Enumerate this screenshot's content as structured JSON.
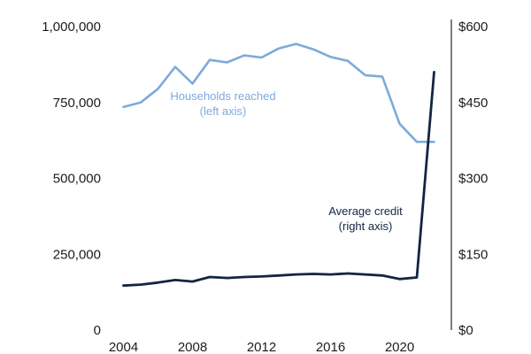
{
  "colors": {
    "left_series": "#7eaadc",
    "right_series": "#142542",
    "axis_text": "#1c1c1c"
  },
  "chart_data": {
    "type": "line",
    "title": "",
    "xlabel": "",
    "ylabel_left": "",
    "ylabel_right": "",
    "grid": false,
    "x": [
      2004,
      2005,
      2006,
      2007,
      2008,
      2009,
      2010,
      2011,
      2012,
      2013,
      2014,
      2015,
      2016,
      2017,
      2018,
      2019,
      2020,
      2021,
      2022
    ],
    "xlim": [
      2003,
      2023
    ],
    "x_ticks": [
      2004,
      2008,
      2012,
      2016,
      2020
    ],
    "x_tick_labels": [
      "2004",
      "2008",
      "2012",
      "2016",
      "2020"
    ],
    "y_left": {
      "lim": [
        0,
        1000000
      ],
      "ticks": [
        0,
        250000,
        500000,
        750000,
        1000000
      ],
      "tick_labels": [
        "0",
        "250,000",
        "500,000",
        "750,000",
        "1,000,000"
      ]
    },
    "y_right": {
      "lim": [
        0,
        600
      ],
      "ticks": [
        0,
        150,
        300,
        450,
        600
      ],
      "tick_labels": [
        "$0",
        "$150",
        "$300",
        "$450",
        "$600"
      ]
    },
    "series": [
      {
        "axis": "left",
        "values": [
          735000,
          750000,
          795000,
          867000,
          812000,
          890000,
          882000,
          905000,
          898000,
          928000,
          943000,
          925000,
          900000,
          887000,
          840000,
          835000,
          680000,
          620000,
          620000
        ]
      },
      {
        "axis": "right",
        "values": [
          88,
          90,
          94,
          99,
          96,
          105,
          103,
          105,
          106,
          108,
          110,
          111,
          110,
          112,
          110,
          108,
          101,
          104,
          510
        ]
      }
    ],
    "annotations": [
      {
        "series": 0,
        "lines": [
          "Households reached",
          "(left axis)"
        ]
      },
      {
        "series": 1,
        "lines": [
          "Average credit",
          "(right axis)"
        ]
      }
    ]
  }
}
